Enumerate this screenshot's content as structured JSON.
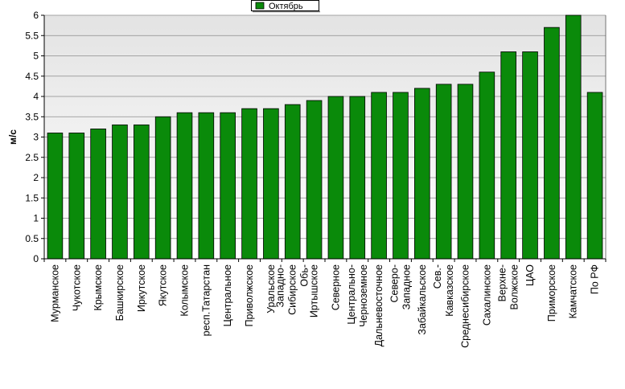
{
  "chart_data": {
    "type": "bar",
    "ylabel": "м/с",
    "xlabel": "",
    "ylim": [
      0,
      6
    ],
    "yticks": [
      0,
      0.5,
      1,
      1.5,
      2,
      2.5,
      3,
      3.5,
      4,
      4.5,
      5,
      5.5,
      6
    ],
    "grid": true,
    "legend": "top-center",
    "colors": {
      "bar": "#0a8a0a",
      "bar_edge": "#000000",
      "plot_bg_top": "#e3e3e3",
      "plot_bg_bottom": "#ffffff",
      "grid": "#8c8c8c"
    },
    "series": [
      {
        "name": "Октябрь",
        "values": [
          3.1,
          3.1,
          3.2,
          3.3,
          3.3,
          3.5,
          3.6,
          3.6,
          3.6,
          3.7,
          3.7,
          3.8,
          3.9,
          4.0,
          4.0,
          4.1,
          4.1,
          4.2,
          4.3,
          4.3,
          4.6,
          5.1,
          5.1,
          5.7,
          6.0,
          4.1
        ]
      }
    ],
    "categories": [
      [
        "Мурманское"
      ],
      [
        "Чукотское"
      ],
      [
        "Крымское"
      ],
      [
        "Башкирское"
      ],
      [
        "Иркутское"
      ],
      [
        "Якутское"
      ],
      [
        "Колымское"
      ],
      [
        "респ.Татарстан"
      ],
      [
        "Центральное"
      ],
      [
        "Приволжское"
      ],
      [
        "Уральское"
      ],
      [
        "Западно-",
        "Сибирское",
        "Обь-"
      ],
      [
        "Иртышское"
      ],
      [
        "Северное"
      ],
      [
        "Центрально-",
        "Черноземное"
      ],
      [
        "Дальневосточное"
      ],
      [
        "Северо-",
        "Западное"
      ],
      [
        "Забайкальское"
      ],
      [
        "Сев.-",
        "Кавказское"
      ],
      [
        "Среднесибирское"
      ],
      [
        "Сахалинское"
      ],
      [
        "Верхне-",
        "Волжское"
      ],
      [
        "ЦАО"
      ],
      [
        "Приморское"
      ],
      [
        "Камчатское"
      ],
      [
        "По РФ"
      ]
    ]
  }
}
